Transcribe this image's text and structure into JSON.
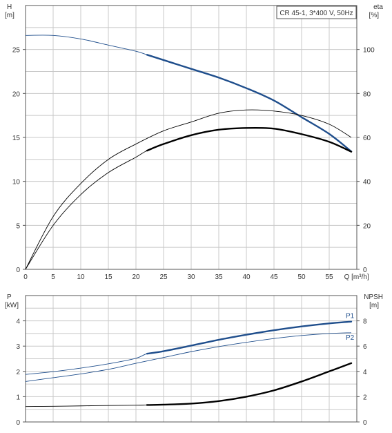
{
  "chart_data": [
    {
      "type": "line",
      "id": "top",
      "annotation": "CR 45-1, 3*400 V, 50Hz",
      "left_axis": {
        "label": "H",
        "unit": "[m]",
        "range": [
          0,
          30
        ],
        "ticks": [
          0,
          5,
          10,
          15,
          20,
          25
        ]
      },
      "right_axis": {
        "label": "eta",
        "unit": "[%]",
        "range": [
          0,
          120
        ],
        "ticks": [
          0,
          20,
          40,
          60,
          80,
          100
        ]
      },
      "x_axis": {
        "label": "Q [m³/h]",
        "range": [
          0,
          60
        ],
        "ticks": [
          0,
          5,
          10,
          15,
          20,
          25,
          30,
          35,
          40,
          45,
          50,
          55
        ]
      },
      "grid": true,
      "series": [
        {
          "axis": "left",
          "color": "#1f4e8c",
          "thin_until": 22,
          "x": [
            0,
            5,
            10,
            15,
            20,
            22,
            25,
            30,
            35,
            40,
            45,
            50,
            55,
            59
          ],
          "y": [
            26.6,
            26.6,
            26.2,
            25.5,
            24.8,
            24.4,
            23.8,
            22.8,
            21.8,
            20.6,
            19.2,
            17.3,
            15.4,
            13.4
          ]
        },
        {
          "axis": "right",
          "color": "#000000",
          "thin_until": 59,
          "x": [
            0,
            5,
            10,
            15,
            20,
            25,
            30,
            35,
            40,
            45,
            50,
            55,
            59
          ],
          "y": [
            0,
            24,
            39,
            50,
            57,
            63,
            67,
            71,
            72.5,
            72,
            70,
            66,
            60
          ]
        },
        {
          "axis": "right",
          "color": "#000000",
          "thin_until": 22,
          "x": [
            0,
            5,
            10,
            15,
            20,
            22,
            25,
            30,
            35,
            40,
            45,
            50,
            55,
            59
          ],
          "y": [
            0,
            20,
            34,
            44,
            51,
            54,
            57,
            61,
            63.5,
            64.3,
            64,
            61.5,
            58,
            53.5
          ]
        }
      ]
    },
    {
      "type": "line",
      "id": "bottom",
      "left_axis": {
        "label": "P",
        "unit": "[kW]",
        "range": [
          0,
          5
        ],
        "ticks": [
          0,
          1,
          2,
          3,
          4
        ]
      },
      "right_axis": {
        "label": "NPSH",
        "unit": "[m]",
        "range": [
          0,
          10
        ],
        "ticks": [
          0,
          2,
          4,
          6,
          8
        ]
      },
      "x_axis": {
        "range": [
          0,
          60
        ]
      },
      "grid": true,
      "series": [
        {
          "name": "P1",
          "axis": "left",
          "color": "#1f4e8c",
          "thin_until": 22,
          "x": [
            0,
            5,
            10,
            15,
            20,
            22,
            25,
            30,
            35,
            40,
            45,
            50,
            55,
            59
          ],
          "y": [
            1.88,
            1.99,
            2.13,
            2.3,
            2.52,
            2.7,
            2.8,
            3.02,
            3.25,
            3.45,
            3.63,
            3.78,
            3.9,
            3.97
          ]
        },
        {
          "name": "P2",
          "axis": "left",
          "color": "#1f4e8c",
          "thin_until": 59,
          "x": [
            0,
            5,
            10,
            15,
            20,
            25,
            30,
            35,
            40,
            45,
            50,
            55,
            59
          ],
          "y": [
            1.6,
            1.75,
            1.9,
            2.08,
            2.32,
            2.55,
            2.78,
            2.98,
            3.15,
            3.3,
            3.42,
            3.5,
            3.53
          ]
        },
        {
          "axis": "right",
          "color": "#000000",
          "thin_until": 22,
          "x": [
            0,
            5,
            10,
            15,
            20,
            22,
            25,
            30,
            35,
            40,
            45,
            50,
            55,
            59
          ],
          "y": [
            1.22,
            1.24,
            1.27,
            1.3,
            1.32,
            1.34,
            1.37,
            1.45,
            1.65,
            2.0,
            2.5,
            3.2,
            4.0,
            4.65
          ]
        }
      ]
    }
  ]
}
